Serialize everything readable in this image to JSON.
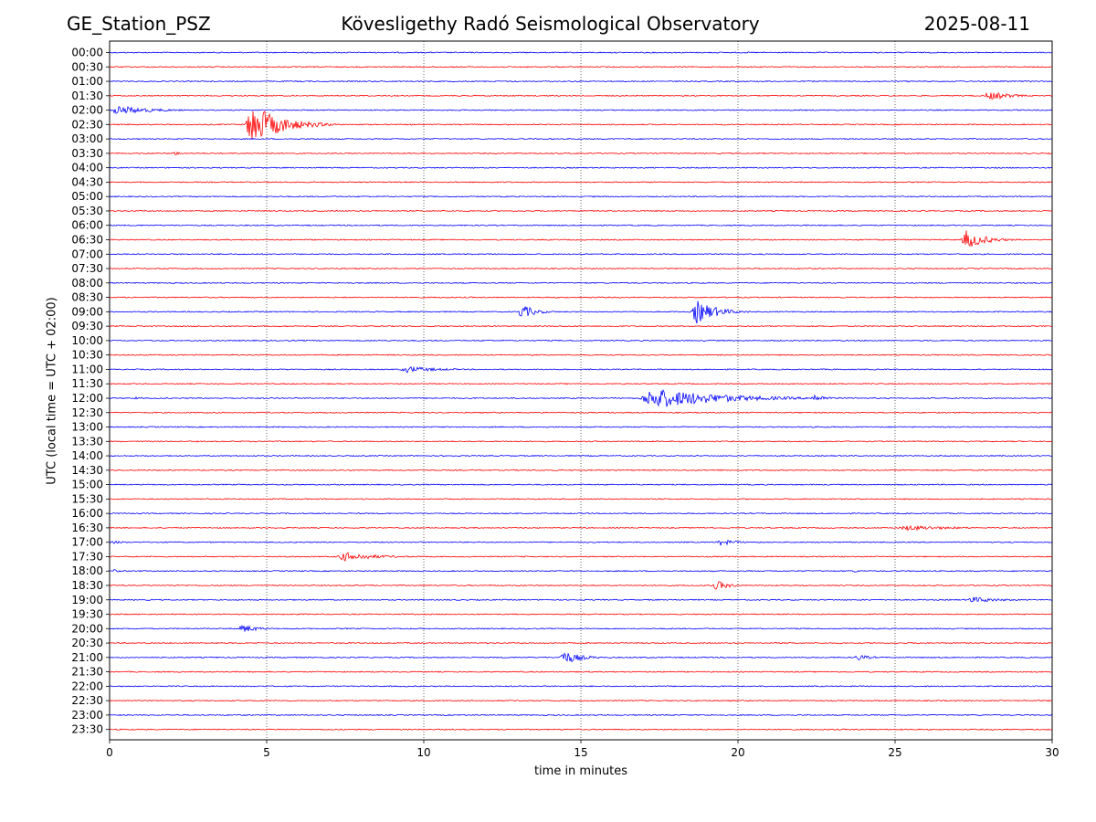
{
  "header": {
    "station": "GE_Station_PSZ",
    "title": "Kövesligethy Radó Seismological Observatory",
    "date": "2025-08-11"
  },
  "chart_data": {
    "type": "line",
    "chart_kind": "helicorder",
    "xlabel": "time in minutes",
    "ylabel": "UTC (local time = UTC + 02:00)",
    "xlim": [
      0,
      30
    ],
    "xticks": [
      0,
      5,
      10,
      15,
      20,
      25,
      30
    ],
    "grid": "vertical dotted lines at x ticks",
    "row_labels": [
      "00:00",
      "00:30",
      "01:00",
      "01:30",
      "02:00",
      "02:30",
      "03:00",
      "03:30",
      "04:00",
      "04:30",
      "05:00",
      "05:30",
      "06:00",
      "06:30",
      "07:00",
      "07:30",
      "08:00",
      "08:30",
      "09:00",
      "09:30",
      "10:00",
      "10:30",
      "11:00",
      "11:30",
      "12:00",
      "12:30",
      "13:00",
      "13:30",
      "14:00",
      "14:30",
      "15:00",
      "15:30",
      "16:00",
      "16:30",
      "17:00",
      "17:30",
      "18:00",
      "18:30",
      "19:00",
      "19:30",
      "20:00",
      "20:30",
      "21:00",
      "21:30",
      "22:00",
      "22:30",
      "23:00",
      "23:30"
    ],
    "trace_colors": [
      "#0000ff",
      "#ff0000"
    ],
    "events": [
      {
        "row": "01:30",
        "start_min": 27.8,
        "end_min": 30,
        "peak": 0.35
      },
      {
        "row": "02:00",
        "start_min": 0,
        "end_min": 3.3,
        "peak": 0.35
      },
      {
        "row": "02:30",
        "start_min": 4.3,
        "end_min": 7.2,
        "peak": 1.6
      },
      {
        "row": "03:30",
        "start_min": 2.0,
        "end_min": 2.9,
        "peak": 0.15
      },
      {
        "row": "06:30",
        "start_min": 27.1,
        "end_min": 29.0,
        "peak": 0.75
      },
      {
        "row": "09:00",
        "start_min": 13.0,
        "end_min": 14.3,
        "peak": 0.6
      },
      {
        "row": "09:00",
        "start_min": 18.5,
        "end_min": 20.5,
        "peak": 0.95
      },
      {
        "row": "11:00",
        "start_min": 9.2,
        "end_min": 12.4,
        "peak": 0.25
      },
      {
        "row": "12:00",
        "start_min": 0.8,
        "end_min": 1.1,
        "peak": 0.15
      },
      {
        "row": "12:00",
        "start_min": 16.8,
        "end_min": 23.5,
        "peak": 0.8
      },
      {
        "row": "12:00",
        "start_min": 22.3,
        "end_min": 23.5,
        "peak": 0.35
      },
      {
        "row": "16:30",
        "start_min": 25.0,
        "end_min": 30,
        "peak": 0.2
      },
      {
        "row": "17:00",
        "start_min": 0,
        "end_min": 1.5,
        "peak": 0.12
      },
      {
        "row": "17:00",
        "start_min": 19.3,
        "end_min": 21.0,
        "peak": 0.25
      },
      {
        "row": "17:30",
        "start_min": 7.2,
        "end_min": 10.5,
        "peak": 0.35
      },
      {
        "row": "18:00",
        "start_min": 0.1,
        "end_min": 0.6,
        "peak": 0.15
      },
      {
        "row": "18:00",
        "start_min": 23.5,
        "end_min": 25.5,
        "peak": 0.1
      },
      {
        "row": "18:30",
        "start_min": 19.2,
        "end_min": 20.5,
        "peak": 0.4
      },
      {
        "row": "19:00",
        "start_min": 27.2,
        "end_min": 30,
        "peak": 0.25
      },
      {
        "row": "20:00",
        "start_min": 4.1,
        "end_min": 5.6,
        "peak": 0.35
      },
      {
        "row": "21:00",
        "start_min": 14.3,
        "end_min": 16.0,
        "peak": 0.55
      },
      {
        "row": "21:00",
        "start_min": 23.7,
        "end_min": 25.0,
        "peak": 0.25
      }
    ]
  }
}
